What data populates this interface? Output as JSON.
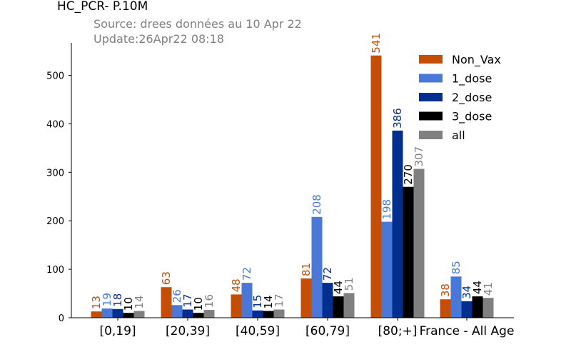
{
  "chart_data": {
    "type": "bar",
    "title": "HC_PCR- P.10M",
    "subtitle_lines": [
      "Source: drees données au 10 Apr 22",
      "Update:26Apr22 08:18"
    ],
    "xlabel": "",
    "ylabel": "",
    "ylim": [
      0,
      567
    ],
    "yticks": [
      0,
      100,
      200,
      300,
      400,
      500
    ],
    "grid": false,
    "legend_position": "top-right",
    "categories": [
      "[0,19]",
      "[20,39]",
      "[40,59]",
      "[60,79]",
      "[80;+]",
      "France - All Age"
    ],
    "series": [
      {
        "name": "Non_Vax",
        "color": "#c44e05",
        "values": [
          13,
          63,
          48,
          81,
          541,
          38
        ]
      },
      {
        "name": "1_dose",
        "color": "#4a78d8",
        "values": [
          19,
          26,
          72,
          208,
          198,
          85
        ]
      },
      {
        "name": "2_dose",
        "color": "#022f8f",
        "values": [
          18,
          17,
          15,
          72,
          386,
          34
        ]
      },
      {
        "name": "3_dose",
        "color": "#000000",
        "values": [
          10,
          10,
          14,
          44,
          270,
          44
        ]
      },
      {
        "name": "all",
        "color": "#808080",
        "values": [
          14,
          16,
          17,
          51,
          307,
          41
        ]
      }
    ]
  }
}
